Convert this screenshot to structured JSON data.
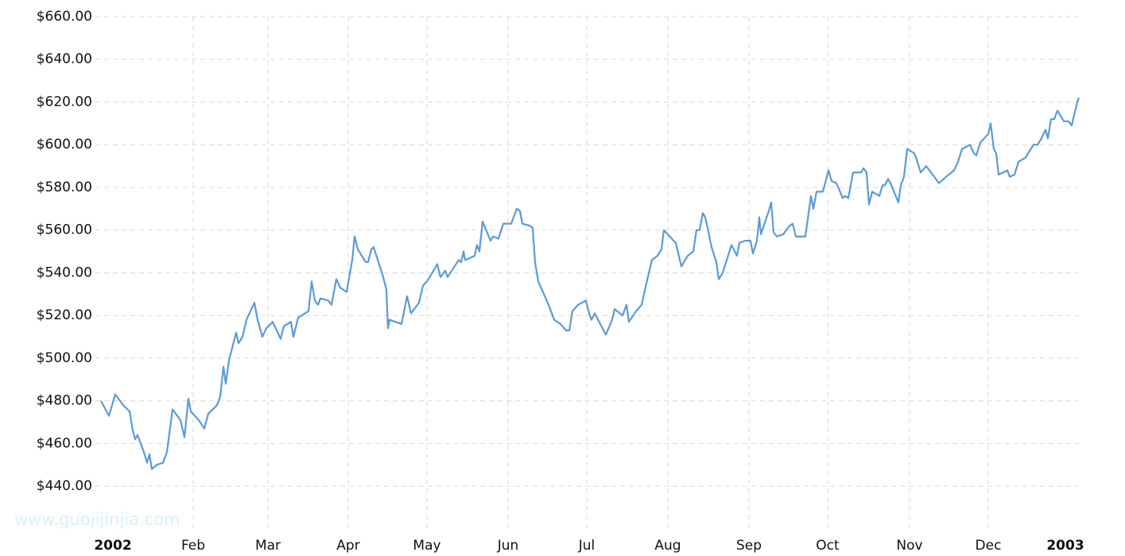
{
  "chart_data": {
    "type": "line",
    "watermark": "www.guojijinjia.com",
    "x": [
      0,
      3,
      5.4,
      8.4,
      10.8,
      12,
      12.9,
      13.8,
      15.9,
      17.4,
      18.3,
      19.2,
      21,
      23.4,
      24.9,
      27,
      30,
      31.5,
      33,
      33.9,
      36.9,
      39,
      40.5,
      43.8,
      45,
      46.2,
      47.1,
      48.3,
      51,
      51.9,
      53.4,
      54.9,
      57.9,
      59.1,
      60.9,
      62.4,
      64.8,
      67.8,
      69,
      71.7,
      72.6,
      74.4,
      78.3,
      79.5,
      80.7,
      81.9,
      82.8,
      85.8,
      87,
      88.8,
      90.3,
      92.7,
      94.8,
      95.7,
      96.9,
      99.9,
      100.8,
      102,
      102.9,
      106.5,
      107.7,
      108.3,
      108.9,
      113.4,
      115.5,
      117,
      120,
      121.5,
      123,
      126,
      126.9,
      128.1,
      129.9,
      130.8,
      135,
      135.9,
      136.8,
      137.4,
      141,
      141.9,
      142.8,
      144,
      147,
      147.9,
      150,
      151.8,
      154.8,
      156.9,
      158.1,
      159,
      162,
      162.9,
      163.8,
      165,
      168.9,
      171,
      173.4,
      175.5,
      176.7,
      177.9,
      180,
      183,
      184.2,
      185.1,
      186.3,
      190.5,
      192.9,
      193.8,
      196.8,
      198.3,
      199.2,
      201.9,
      204,
      205.8,
      207.9,
      210,
      211.5,
      212.4,
      216.9,
      219,
      221.4,
      223.5,
      224.7,
      225.9,
      227.1,
      228,
      228.9,
      230.4,
      232.2,
      233.1,
      234.6,
      237.9,
      240,
      240.9,
      243,
      245.1,
      246,
      247.5,
      248.4,
      249,
      252,
      252.9,
      253.8,
      255,
      257.4,
      259.8,
      261,
      262.2,
      265.8,
      267.9,
      268.8,
      270,
      272.4,
      274.5,
      275.7,
      277.5,
      279.9,
      280.8,
      282,
      283.8,
      285.9,
      286.8,
      287.7,
      288.9,
      289.8,
      291,
      293.7,
      294.9,
      295.8,
      297,
      297.9,
      300.9,
      301.8,
      303,
      304.2,
      306.9,
      307.8,
      309.3,
      311.4,
      314.4,
      316.2,
      318.9,
      321.9,
      323.4,
      324.9,
      327.9,
      329.4,
      330.3,
      331.8,
      334.8,
      335.7,
      336.9,
      337.8,
      338.7,
      342,
      342.9,
      344.7,
      346.2,
      348.9,
      349.8,
      351.9,
      353.4,
      354.9,
      356.4,
      357.3,
      358.5,
      359.7,
      360.9,
      363.3,
      365.1,
      366.3,
      367.2,
      368.4,
      369
    ],
    "series": [
      {
        "color": "#5b9bd5",
        "values": [
          480,
          473,
          483,
          478,
          475,
          466,
          462,
          464,
          457,
          451,
          455,
          448,
          450,
          451,
          456,
          476,
          471,
          463,
          481,
          475,
          471,
          467,
          474,
          478,
          482,
          496,
          488,
          499,
          512,
          507,
          510,
          518,
          526,
          518,
          510,
          514,
          517,
          509,
          515,
          517,
          510,
          519,
          522,
          536,
          527,
          525,
          528,
          527,
          525,
          537,
          533,
          531,
          546,
          557,
          551,
          545,
          545,
          551,
          552,
          538,
          532,
          514,
          518,
          516,
          529,
          521,
          526,
          534,
          536,
          542,
          544,
          538,
          541,
          538,
          546,
          545,
          550,
          546,
          548,
          553,
          550,
          564,
          555,
          557,
          556,
          563,
          563,
          570,
          569,
          563,
          562,
          561,
          545,
          536,
          525,
          518,
          516,
          513,
          513,
          522,
          525,
          527,
          521,
          518,
          521,
          511,
          518,
          523,
          520,
          525,
          517,
          522,
          525,
          535,
          546,
          548,
          551,
          560,
          554,
          543,
          548,
          550,
          560,
          560,
          568,
          566,
          561,
          552,
          545,
          537,
          540,
          553,
          548,
          554,
          555,
          555,
          549,
          555,
          566,
          558,
          569,
          573,
          559,
          557,
          558,
          562,
          563,
          557,
          557,
          576,
          570,
          578,
          578,
          588,
          583,
          582,
          575,
          576,
          575,
          587,
          587,
          587,
          589,
          587,
          572,
          578,
          576,
          581,
          581,
          584,
          582,
          573,
          581,
          585,
          598,
          596,
          593,
          587,
          590,
          585,
          582,
          585,
          588,
          592,
          598,
          600,
          596,
          595,
          601,
          605,
          610,
          598,
          596,
          586,
          588,
          585,
          586,
          592,
          594,
          596,
          600,
          600,
          603,
          607,
          603,
          612,
          612,
          616,
          611,
          611,
          609,
          614,
          620,
          622
        ]
      }
    ],
    "xlim": [
      0,
      369
    ],
    "xticks": [
      {
        "value": 4.5,
        "label": "2002"
      },
      {
        "value": 34.8,
        "label": "Feb"
      },
      {
        "value": 63,
        "label": "Mar"
      },
      {
        "value": 93.3,
        "label": "Apr"
      },
      {
        "value": 123,
        "label": "May"
      },
      {
        "value": 153.6,
        "label": "Jun"
      },
      {
        "value": 183.3,
        "label": "Jul"
      },
      {
        "value": 213.9,
        "label": "Aug"
      },
      {
        "value": 244.5,
        "label": "Sep"
      },
      {
        "value": 274.2,
        "label": "Oct"
      },
      {
        "value": 305.1,
        "label": "Nov"
      },
      {
        "value": 334.8,
        "label": "Dec"
      },
      {
        "value": 363.9,
        "label": "2003"
      }
    ],
    "ylim": [
      420,
      660
    ],
    "yticks": [
      {
        "value": 440,
        "label": "$440.00"
      },
      {
        "value": 460,
        "label": "$460.00"
      },
      {
        "value": 480,
        "label": "$480.00"
      },
      {
        "value": 500,
        "label": "$500.00"
      },
      {
        "value": 520,
        "label": "$520.00"
      },
      {
        "value": 540,
        "label": "$540.00"
      },
      {
        "value": 560,
        "label": "$560.00"
      },
      {
        "value": 580,
        "label": "$580.00"
      },
      {
        "value": 600,
        "label": "$600.00"
      },
      {
        "value": 620,
        "label": "$620.00"
      },
      {
        "value": 640,
        "label": "$640.00"
      },
      {
        "value": 660,
        "label": "$660.00"
      }
    ],
    "grid": true
  }
}
